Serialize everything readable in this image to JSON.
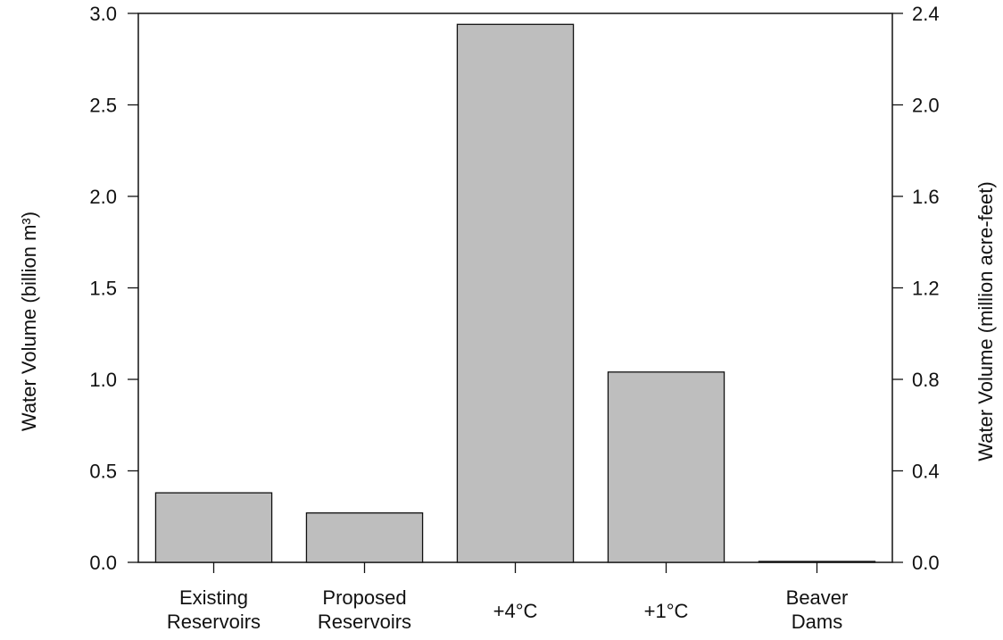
{
  "chart_data": {
    "type": "bar",
    "categories": [
      [
        "Existing",
        "Reservoirs"
      ],
      [
        "Proposed",
        "Reservoirs"
      ],
      [
        "+4°C"
      ],
      [
        "+1°C"
      ],
      [
        "Beaver",
        "Dams"
      ]
    ],
    "values": [
      0.38,
      0.27,
      2.94,
      1.04,
      0.005
    ],
    "ylim": [
      0,
      3.0
    ],
    "yticks": [
      "0.0",
      "0.5",
      "1.0",
      "1.5",
      "2.0",
      "2.5",
      "3.0"
    ],
    "ylabel": "Water Volume (billion m³)",
    "secondary_axis": {
      "label": "Water Volume (million acre-feet)",
      "ticks": [
        "0.0",
        "0.4",
        "0.8",
        "1.2",
        "1.6",
        "2.0",
        "2.4"
      ]
    },
    "bar_color": "#bebebe",
    "grid": false,
    "legend": "none"
  }
}
